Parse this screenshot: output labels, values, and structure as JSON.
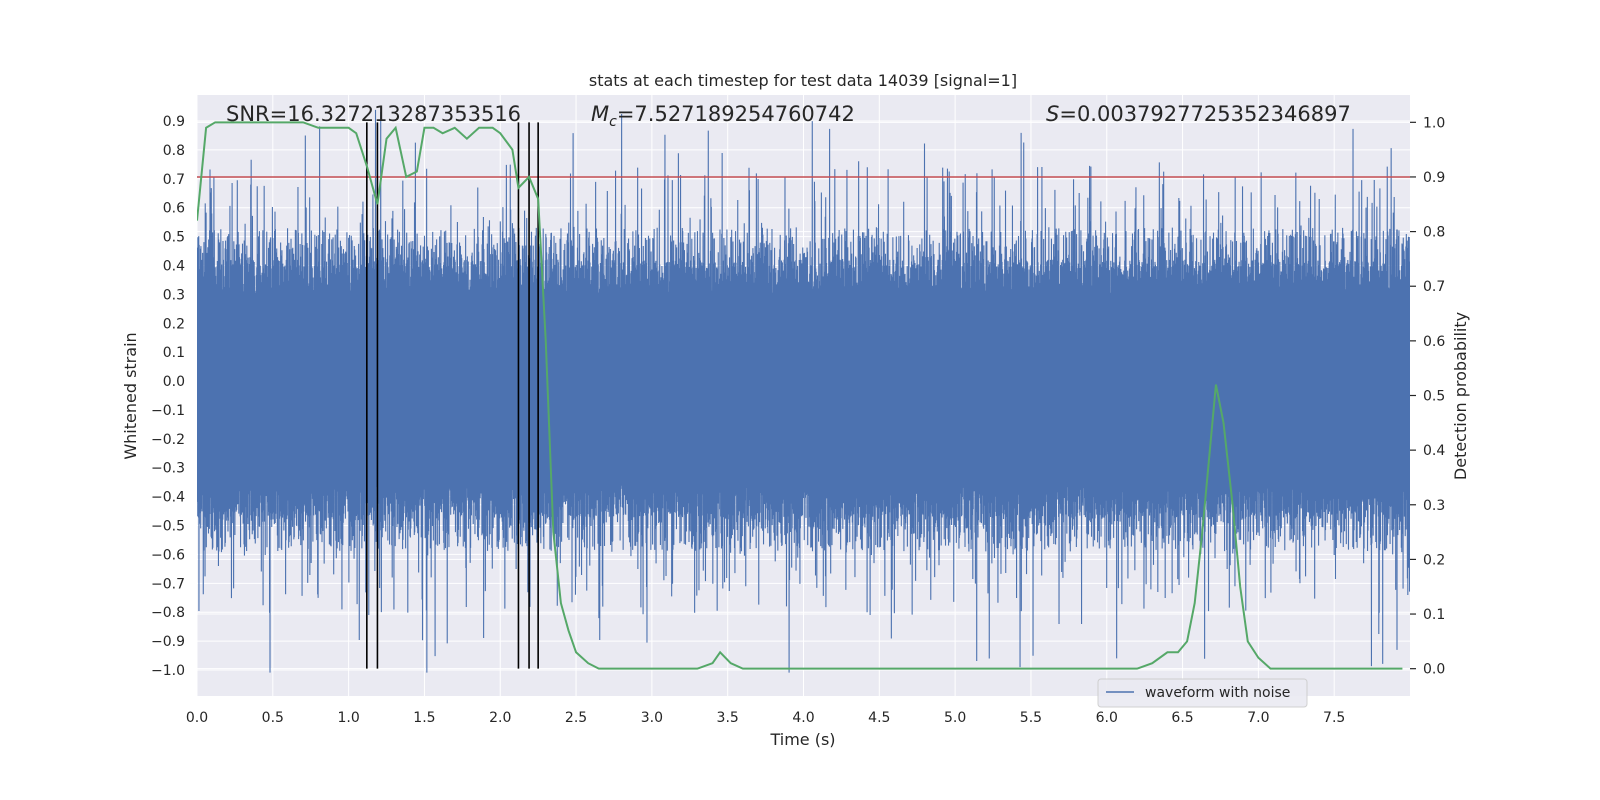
{
  "chart_data": {
    "type": "line",
    "title": "stats at each timestep for test data 14039 [signal=1]",
    "xlabel": "Time (s)",
    "ylabel_left": "Whitened strain",
    "ylabel_right": "Detection probability",
    "xlim": [
      0.0,
      8.0
    ],
    "ylim_left": [
      -1.09,
      0.99
    ],
    "ylim_right": [
      -0.05,
      1.05
    ],
    "x_ticks": [
      "0.0",
      "0.5",
      "1.0",
      "1.5",
      "2.0",
      "2.5",
      "3.0",
      "3.5",
      "4.0",
      "4.5",
      "5.0",
      "5.5",
      "6.0",
      "6.5",
      "7.0",
      "7.5"
    ],
    "x_tick_values": [
      0.0,
      0.5,
      1.0,
      1.5,
      2.0,
      2.5,
      3.0,
      3.5,
      4.0,
      4.5,
      5.0,
      5.5,
      6.0,
      6.5,
      7.0,
      7.5
    ],
    "y_left_ticks": [
      "0.9",
      "0.8",
      "0.7",
      "0.6",
      "0.5",
      "0.4",
      "0.3",
      "0.2",
      "0.1",
      "0.0",
      "−0.1",
      "−0.2",
      "−0.3",
      "−0.4",
      "−0.5",
      "−0.6",
      "−0.7",
      "−0.8",
      "−0.9",
      "−1.0"
    ],
    "y_left_tick_values": [
      0.9,
      0.8,
      0.7,
      0.6,
      0.5,
      0.4,
      0.3,
      0.2,
      0.1,
      0.0,
      -0.1,
      -0.2,
      -0.3,
      -0.4,
      -0.5,
      -0.6,
      -0.7,
      -0.8,
      -0.9,
      -1.0
    ],
    "y_right_ticks": [
      "1.0",
      "0.9",
      "0.8",
      "0.7",
      "0.6",
      "0.5",
      "0.4",
      "0.3",
      "0.2",
      "0.1",
      "0.0"
    ],
    "y_right_tick_values": [
      1.0,
      0.9,
      0.8,
      0.7,
      0.6,
      0.5,
      0.4,
      0.3,
      0.2,
      0.1,
      0.0
    ],
    "annotations": {
      "snr": "SNR=16.327213287353516",
      "mc_symbol": "M",
      "mc_sub": "c",
      "mc_value": "=7.527189254760742",
      "s_symbol": "S",
      "s_value": "=0.0037927725352346897"
    },
    "threshold": {
      "value": 0.9,
      "axis": "right",
      "color": "#c44e52"
    },
    "vertical_lines": [
      1.12,
      1.19,
      2.12,
      2.19,
      2.25
    ],
    "legend": {
      "label": "waveform with noise",
      "location": "lower-right"
    },
    "waveform": {
      "name": "waveform with noise",
      "color": "#4c72b0",
      "t_start": 0.0,
      "t_end": 8.0,
      "core_amplitude": 0.33,
      "typical_peak": 0.55
    },
    "probability_series": {
      "name": "Detection probability",
      "color": "#55a868",
      "t": [
        0.0,
        0.06,
        0.12,
        0.2,
        0.3,
        0.5,
        0.7,
        0.8,
        0.9,
        1.0,
        1.05,
        1.12,
        1.19,
        1.25,
        1.31,
        1.38,
        1.45,
        1.5,
        1.56,
        1.62,
        1.7,
        1.78,
        1.86,
        1.95,
        2.0,
        2.08,
        2.12,
        2.19,
        2.25,
        2.3,
        2.35,
        2.4,
        2.45,
        2.5,
        2.58,
        2.65,
        2.7,
        2.8,
        3.0,
        3.2,
        3.3,
        3.4,
        3.45,
        3.52,
        3.6,
        3.8,
        4.0,
        4.2,
        4.4,
        4.6,
        4.8,
        5.0,
        5.2,
        5.4,
        5.6,
        5.8,
        6.0,
        6.2,
        6.3,
        6.4,
        6.47,
        6.53,
        6.58,
        6.63,
        6.68,
        6.72,
        6.77,
        6.83,
        6.88,
        6.93,
        7.0,
        7.08,
        7.15,
        7.3,
        7.5,
        7.7,
        7.95
      ],
      "p": [
        0.82,
        0.99,
        1.0,
        1.0,
        1.0,
        1.0,
        1.0,
        0.99,
        0.99,
        0.99,
        0.98,
        0.92,
        0.85,
        0.97,
        0.99,
        0.9,
        0.91,
        0.99,
        0.99,
        0.98,
        0.99,
        0.97,
        0.99,
        0.99,
        0.98,
        0.95,
        0.88,
        0.9,
        0.86,
        0.6,
        0.25,
        0.12,
        0.07,
        0.03,
        0.01,
        0.0,
        0.0,
        0.0,
        0.0,
        0.0,
        0.0,
        0.01,
        0.03,
        0.01,
        0.0,
        0.0,
        0.0,
        0.0,
        0.0,
        0.0,
        0.0,
        0.0,
        0.0,
        0.0,
        0.0,
        0.0,
        0.0,
        0.0,
        0.01,
        0.03,
        0.03,
        0.05,
        0.12,
        0.25,
        0.4,
        0.52,
        0.45,
        0.3,
        0.15,
        0.05,
        0.02,
        0.0,
        0.0,
        0.0,
        0.0,
        0.0,
        0.0
      ]
    }
  }
}
